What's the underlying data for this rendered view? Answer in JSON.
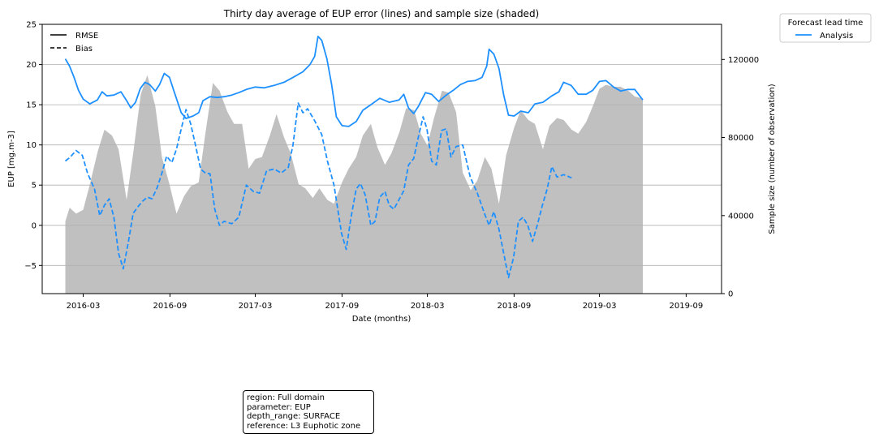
{
  "chart_data": {
    "type": "line",
    "title": "Thirty day average of EUP error (lines) and sample size (shaded)",
    "xlabel": "Date (months)",
    "ylabel": "EUP [mg.m-3]",
    "y2label": "Sample size (number of observation)",
    "xlim": [
      "2015-12-05",
      "2019-11-15"
    ],
    "ylim": [
      -8.5,
      25
    ],
    "y2lim": [
      0,
      138000
    ],
    "x_ticks": [
      "2016-03",
      "2016-09",
      "2017-03",
      "2017-09",
      "2018-03",
      "2018-09",
      "2019-03",
      "2019-09"
    ],
    "y_ticks": [
      -5,
      0,
      5,
      10,
      15,
      20,
      25
    ],
    "y_tick_labels": [
      "−5",
      "0",
      "5",
      "10",
      "15",
      "20",
      "25"
    ],
    "y2_ticks": [
      0,
      40000,
      80000,
      120000
    ],
    "grid": "horizontal",
    "style_legend": {
      "placement": "upper-left",
      "entries": [
        {
          "label": "RMSE",
          "style": "solid"
        },
        {
          "label": "Bias",
          "style": "dashed"
        }
      ]
    },
    "legend": {
      "placement": "outside-top-right",
      "title": "Forecast lead time",
      "entries": [
        {
          "label": "Analysis",
          "color": "#1e90ff"
        }
      ]
    },
    "series": [
      {
        "name": "Analysis",
        "metric": "RMSE",
        "style": "solid",
        "color": "#1e90ff",
        "points": [
          [
            "2016-01-23",
            20.7
          ],
          [
            "2016-02-01",
            19.8
          ],
          [
            "2016-02-10",
            18.5
          ],
          [
            "2016-02-20",
            16.8
          ],
          [
            "2016-03-01",
            15.7
          ],
          [
            "2016-03-15",
            15.1
          ],
          [
            "2016-03-31",
            15.6
          ],
          [
            "2016-04-10",
            16.6
          ],
          [
            "2016-04-20",
            16.1
          ],
          [
            "2016-05-05",
            16.2
          ],
          [
            "2016-05-20",
            16.6
          ],
          [
            "2016-06-01",
            15.5
          ],
          [
            "2016-06-10",
            14.6
          ],
          [
            "2016-06-20",
            15.3
          ],
          [
            "2016-06-30",
            17.0
          ],
          [
            "2016-07-10",
            17.8
          ],
          [
            "2016-07-20",
            17.5
          ],
          [
            "2016-08-01",
            16.7
          ],
          [
            "2016-08-10",
            17.5
          ],
          [
            "2016-08-20",
            18.9
          ],
          [
            "2016-08-31",
            18.4
          ],
          [
            "2016-09-10",
            16.6
          ],
          [
            "2016-09-25",
            14.0
          ],
          [
            "2016-10-05",
            13.3
          ],
          [
            "2016-10-20",
            13.6
          ],
          [
            "2016-11-01",
            14.0
          ],
          [
            "2016-11-10",
            15.5
          ],
          [
            "2016-11-25",
            16.0
          ],
          [
            "2016-12-10",
            15.9
          ],
          [
            "2016-12-25",
            16.0
          ],
          [
            "2017-01-10",
            16.2
          ],
          [
            "2017-01-25",
            16.5
          ],
          [
            "2017-02-10",
            16.9
          ],
          [
            "2017-03-01",
            17.2
          ],
          [
            "2017-03-20",
            17.1
          ],
          [
            "2017-04-10",
            17.4
          ],
          [
            "2017-05-01",
            17.8
          ],
          [
            "2017-05-20",
            18.4
          ],
          [
            "2017-06-10",
            19.1
          ],
          [
            "2017-06-25",
            20.0
          ],
          [
            "2017-07-05",
            21.0
          ],
          [
            "2017-07-12",
            23.5
          ],
          [
            "2017-07-20",
            23.0
          ],
          [
            "2017-07-31",
            20.7
          ],
          [
            "2017-08-10",
            17.5
          ],
          [
            "2017-08-20",
            13.5
          ],
          [
            "2017-09-01",
            12.4
          ],
          [
            "2017-09-15",
            12.3
          ],
          [
            "2017-10-01",
            12.9
          ],
          [
            "2017-10-15",
            14.3
          ],
          [
            "2017-11-01",
            15.0
          ],
          [
            "2017-11-20",
            15.8
          ],
          [
            "2017-12-10",
            15.3
          ],
          [
            "2017-12-31",
            15.6
          ],
          [
            "2018-01-10",
            16.3
          ],
          [
            "2018-01-20",
            14.6
          ],
          [
            "2018-01-31",
            13.9
          ],
          [
            "2018-02-10",
            14.8
          ],
          [
            "2018-02-25",
            16.5
          ],
          [
            "2018-03-10",
            16.3
          ],
          [
            "2018-03-25",
            15.4
          ],
          [
            "2018-04-10",
            16.2
          ],
          [
            "2018-04-25",
            16.8
          ],
          [
            "2018-05-10",
            17.5
          ],
          [
            "2018-05-25",
            17.9
          ],
          [
            "2018-06-10",
            18.0
          ],
          [
            "2018-06-25",
            18.4
          ],
          [
            "2018-07-05",
            19.8
          ],
          [
            "2018-07-10",
            21.9
          ],
          [
            "2018-07-20",
            21.3
          ],
          [
            "2018-07-31",
            19.5
          ],
          [
            "2018-08-10",
            16.2
          ],
          [
            "2018-08-20",
            13.7
          ],
          [
            "2018-09-01",
            13.6
          ],
          [
            "2018-09-15",
            14.2
          ],
          [
            "2018-10-01",
            14.0
          ],
          [
            "2018-10-15",
            15.1
          ],
          [
            "2018-11-01",
            15.3
          ],
          [
            "2018-11-20",
            16.1
          ],
          [
            "2018-12-05",
            16.6
          ],
          [
            "2018-12-15",
            17.8
          ],
          [
            "2018-12-31",
            17.4
          ],
          [
            "2019-01-15",
            16.3
          ],
          [
            "2019-02-01",
            16.3
          ],
          [
            "2019-02-15",
            16.8
          ],
          [
            "2019-03-01",
            17.9
          ],
          [
            "2019-03-15",
            18.0
          ],
          [
            "2019-03-31",
            17.2
          ],
          [
            "2019-04-15",
            16.7
          ],
          [
            "2019-04-30",
            16.9
          ],
          [
            "2019-05-15",
            16.9
          ],
          [
            "2019-06-01",
            15.6
          ]
        ]
      },
      {
        "name": "Analysis",
        "metric": "Bias",
        "style": "dashed",
        "color": "#1e90ff",
        "points": [
          [
            "2016-01-23",
            8.0
          ],
          [
            "2016-02-01",
            8.4
          ],
          [
            "2016-02-15",
            9.3
          ],
          [
            "2016-02-28",
            8.7
          ],
          [
            "2016-03-10",
            6.5
          ],
          [
            "2016-03-25",
            4.5
          ],
          [
            "2016-04-05",
            1.2
          ],
          [
            "2016-04-15",
            2.5
          ],
          [
            "2016-04-25",
            3.3
          ],
          [
            "2016-05-05",
            1.0
          ],
          [
            "2016-05-15",
            -3.5
          ],
          [
            "2016-05-25",
            -5.4
          ],
          [
            "2016-06-05",
            -2.0
          ],
          [
            "2016-06-15",
            1.5
          ],
          [
            "2016-06-25",
            2.3
          ],
          [
            "2016-07-05",
            3.0
          ],
          [
            "2016-07-15",
            3.5
          ],
          [
            "2016-07-25",
            3.3
          ],
          [
            "2016-08-05",
            4.7
          ],
          [
            "2016-08-15",
            6.5
          ],
          [
            "2016-08-25",
            8.6
          ],
          [
            "2016-09-05",
            7.8
          ],
          [
            "2016-09-15",
            9.5
          ],
          [
            "2016-09-25",
            12.0
          ],
          [
            "2016-10-05",
            14.4
          ],
          [
            "2016-10-15",
            12.6
          ],
          [
            "2016-10-25",
            10.0
          ],
          [
            "2016-11-05",
            7.0
          ],
          [
            "2016-11-15",
            6.5
          ],
          [
            "2016-11-25",
            6.4
          ],
          [
            "2016-12-05",
            2.0
          ],
          [
            "2016-12-15",
            0.0
          ],
          [
            "2016-12-25",
            0.5
          ],
          [
            "2017-01-10",
            0.2
          ],
          [
            "2017-01-25",
            1.0
          ],
          [
            "2017-02-10",
            5.0
          ],
          [
            "2017-02-25",
            4.2
          ],
          [
            "2017-03-10",
            4.0
          ],
          [
            "2017-03-25",
            6.8
          ],
          [
            "2017-04-10",
            7.0
          ],
          [
            "2017-04-25",
            6.5
          ],
          [
            "2017-05-10",
            7.2
          ],
          [
            "2017-05-20",
            10.0
          ],
          [
            "2017-05-31",
            15.2
          ],
          [
            "2017-06-10",
            14.0
          ],
          [
            "2017-06-20",
            14.5
          ],
          [
            "2017-07-05",
            13.0
          ],
          [
            "2017-07-20",
            11.3
          ],
          [
            "2017-08-01",
            8.0
          ],
          [
            "2017-08-15",
            5.0
          ],
          [
            "2017-08-31",
            -1.0
          ],
          [
            "2017-09-10",
            -3.0
          ],
          [
            "2017-09-20",
            1.0
          ],
          [
            "2017-10-01",
            4.5
          ],
          [
            "2017-10-10",
            5.2
          ],
          [
            "2017-10-20",
            3.8
          ],
          [
            "2017-11-01",
            0.0
          ],
          [
            "2017-11-10",
            0.5
          ],
          [
            "2017-11-20",
            3.5
          ],
          [
            "2017-12-01",
            4.2
          ],
          [
            "2017-12-10",
            2.5
          ],
          [
            "2017-12-20",
            2.0
          ],
          [
            "2017-12-31",
            3.2
          ],
          [
            "2018-01-10",
            4.3
          ],
          [
            "2018-01-20",
            7.5
          ],
          [
            "2018-01-31",
            8.3
          ],
          [
            "2018-02-10",
            11.0
          ],
          [
            "2018-02-20",
            13.5
          ],
          [
            "2018-02-28",
            12.0
          ],
          [
            "2018-03-10",
            8.0
          ],
          [
            "2018-03-20",
            7.5
          ],
          [
            "2018-03-31",
            11.8
          ],
          [
            "2018-04-10",
            12.0
          ],
          [
            "2018-04-20",
            8.5
          ],
          [
            "2018-05-01",
            9.8
          ],
          [
            "2018-05-15",
            10.0
          ],
          [
            "2018-05-31",
            6.0
          ],
          [
            "2018-06-15",
            4.0
          ],
          [
            "2018-06-30",
            1.5
          ],
          [
            "2018-07-10",
            0.0
          ],
          [
            "2018-07-20",
            1.7
          ],
          [
            "2018-07-31",
            -0.5
          ],
          [
            "2018-08-10",
            -3.5
          ],
          [
            "2018-08-20",
            -6.5
          ],
          [
            "2018-08-31",
            -4.0
          ],
          [
            "2018-09-10",
            0.5
          ],
          [
            "2018-09-20",
            1.0
          ],
          [
            "2018-09-30",
            0.0
          ],
          [
            "2018-10-10",
            -2.0
          ],
          [
            "2018-10-20",
            0.0
          ],
          [
            "2018-10-31",
            2.5
          ],
          [
            "2018-11-10",
            4.5
          ],
          [
            "2018-11-20",
            7.3
          ],
          [
            "2018-12-01",
            6.0
          ],
          [
            "2018-12-15",
            6.3
          ],
          [
            "2019-01-01",
            5.9
          ]
        ]
      }
    ],
    "sample_size": {
      "name": "sample size",
      "style": "shaded",
      "color": "#c0c0c0",
      "points": [
        [
          "2016-01-23",
          37000
        ],
        [
          "2016-02-01",
          44000
        ],
        [
          "2016-02-15",
          41000
        ],
        [
          "2016-03-01",
          43000
        ],
        [
          "2016-03-15",
          56000
        ],
        [
          "2016-04-01",
          73000
        ],
        [
          "2016-04-15",
          84000
        ],
        [
          "2016-05-01",
          81000
        ],
        [
          "2016-05-15",
          74000
        ],
        [
          "2016-06-01",
          48000
        ],
        [
          "2016-06-15",
          72000
        ],
        [
          "2016-07-01",
          102000
        ],
        [
          "2016-07-15",
          112000
        ],
        [
          "2016-08-01",
          96000
        ],
        [
          "2016-08-15",
          70000
        ],
        [
          "2016-08-31",
          56000
        ],
        [
          "2016-09-15",
          41000
        ],
        [
          "2016-10-01",
          50000
        ],
        [
          "2016-10-15",
          55000
        ],
        [
          "2016-11-01",
          57000
        ],
        [
          "2016-11-15",
          82000
        ],
        [
          "2016-12-01",
          108000
        ],
        [
          "2016-12-15",
          104000
        ],
        [
          "2017-01-01",
          93000
        ],
        [
          "2017-01-15",
          87000
        ],
        [
          "2017-02-01",
          87000
        ],
        [
          "2017-02-15",
          64000
        ],
        [
          "2017-03-01",
          69000
        ],
        [
          "2017-03-15",
          70000
        ],
        [
          "2017-04-01",
          81000
        ],
        [
          "2017-04-15",
          92000
        ],
        [
          "2017-05-01",
          80000
        ],
        [
          "2017-05-15",
          72000
        ],
        [
          "2017-06-01",
          56000
        ],
        [
          "2017-06-15",
          54000
        ],
        [
          "2017-07-01",
          49000
        ],
        [
          "2017-07-15",
          54000
        ],
        [
          "2017-08-01",
          48000
        ],
        [
          "2017-08-15",
          46000
        ],
        [
          "2017-09-01",
          57000
        ],
        [
          "2017-09-15",
          64000
        ],
        [
          "2017-10-01",
          70000
        ],
        [
          "2017-10-15",
          81000
        ],
        [
          "2017-11-01",
          87000
        ],
        [
          "2017-11-15",
          75000
        ],
        [
          "2017-12-01",
          66000
        ],
        [
          "2017-12-15",
          72000
        ],
        [
          "2018-01-01",
          83000
        ],
        [
          "2018-01-15",
          95000
        ],
        [
          "2018-02-01",
          94000
        ],
        [
          "2018-02-15",
          82000
        ],
        [
          "2018-03-01",
          76000
        ],
        [
          "2018-03-15",
          90000
        ],
        [
          "2018-04-01",
          104000
        ],
        [
          "2018-04-15",
          103000
        ],
        [
          "2018-05-01",
          93000
        ],
        [
          "2018-05-15",
          62000
        ],
        [
          "2018-06-01",
          53000
        ],
        [
          "2018-06-15",
          58000
        ],
        [
          "2018-07-01",
          70000
        ],
        [
          "2018-07-15",
          64000
        ],
        [
          "2018-07-31",
          46000
        ],
        [
          "2018-08-15",
          71000
        ],
        [
          "2018-09-01",
          85000
        ],
        [
          "2018-09-15",
          94000
        ],
        [
          "2018-10-01",
          89000
        ],
        [
          "2018-10-15",
          87000
        ],
        [
          "2018-11-01",
          74000
        ],
        [
          "2018-11-15",
          86000
        ],
        [
          "2018-12-01",
          90000
        ],
        [
          "2018-12-15",
          89000
        ],
        [
          "2019-01-01",
          84000
        ],
        [
          "2019-01-15",
          82000
        ],
        [
          "2019-02-01",
          88000
        ],
        [
          "2019-02-15",
          96000
        ],
        [
          "2019-03-01",
          105000
        ],
        [
          "2019-03-15",
          107000
        ],
        [
          "2019-03-31",
          106000
        ],
        [
          "2019-04-15",
          106000
        ],
        [
          "2019-05-01",
          104000
        ],
        [
          "2019-05-15",
          101000
        ],
        [
          "2019-06-01",
          100000
        ]
      ]
    }
  },
  "info_box": {
    "region": "region: Full domain",
    "parameter": "parameter: EUP",
    "depth_range": "depth_range: SURFACE",
    "reference": "reference: L3 Euphotic zone"
  }
}
